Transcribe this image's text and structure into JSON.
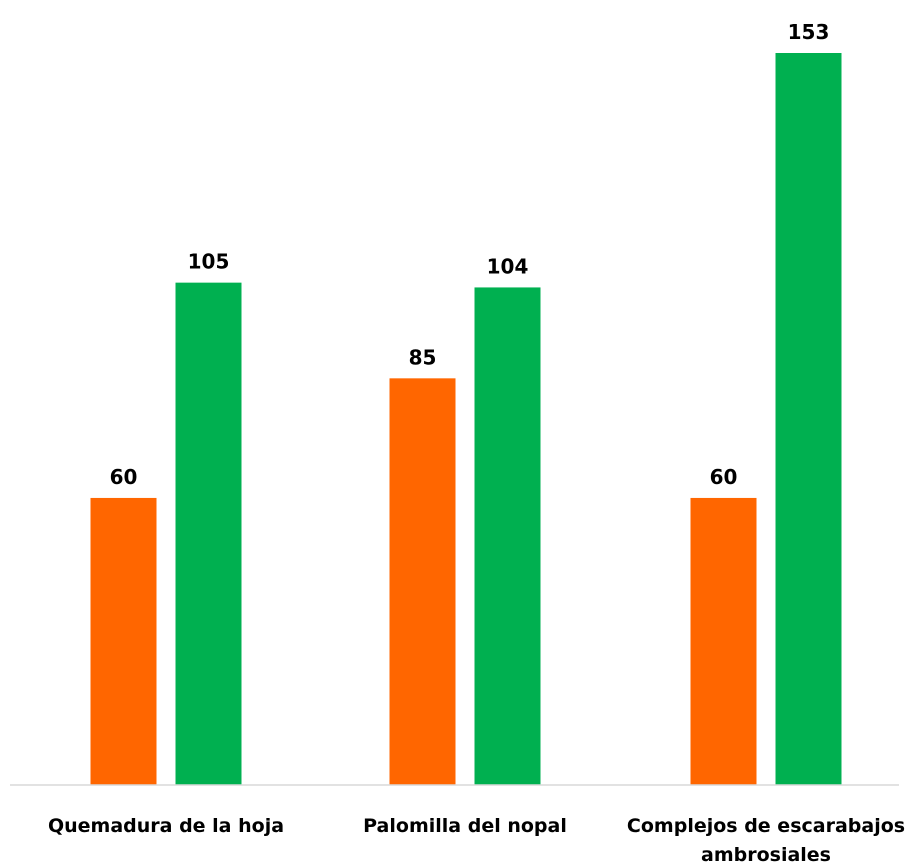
{
  "chart_data": {
    "type": "bar",
    "title": "",
    "xlabel": "",
    "ylabel": "",
    "categories": [
      [
        "Quemadura de la hoja"
      ],
      [
        "Palomilla del nopal"
      ],
      [
        "Complejos de escarabajos",
        "ambrosiales"
      ]
    ],
    "series": [
      {
        "color": "#FF6600",
        "values": [
          60,
          85,
          60
        ]
      },
      {
        "color": "#00B050",
        "values": [
          105,
          104,
          153
        ]
      }
    ],
    "ylim": [
      0,
      153
    ],
    "grid": false,
    "legend": "none",
    "data_labels": true
  }
}
